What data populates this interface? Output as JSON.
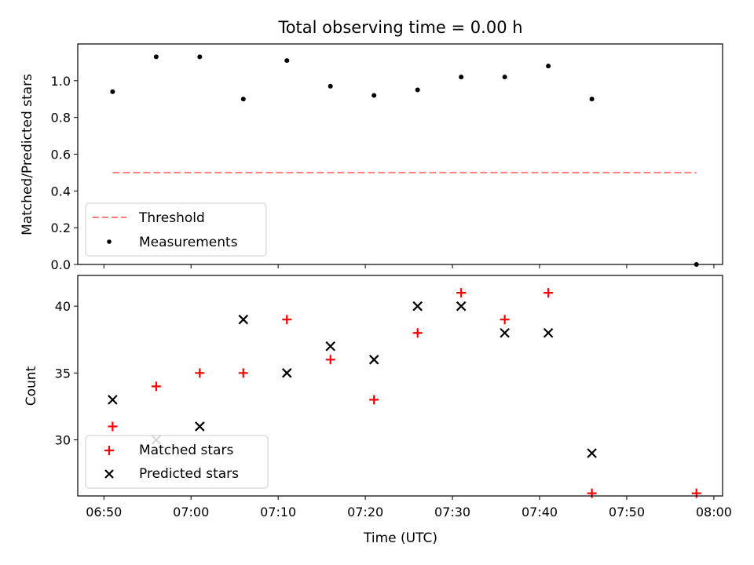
{
  "chart_data": [
    {
      "type": "scatter",
      "title": "Total observing time = 0.00 h",
      "xlabel": "",
      "ylabel": "Matched/Predicted stars",
      "xlim": [
        "06:47",
        "08:01"
      ],
      "ylim": [
        0,
        1.2
      ],
      "yticks": [
        "0.0",
        "0.2",
        "0.4",
        "0.6",
        "0.8",
        "1.0"
      ],
      "threshold": {
        "name": "Threshold",
        "value": 0.5,
        "x_start": "06:51",
        "x_end": "07:58",
        "color": "#ff7f7f",
        "style": "dashed"
      },
      "series": [
        {
          "name": "Measurements",
          "color": "#000000",
          "marker": "dot",
          "x": [
            "06:51",
            "06:56",
            "07:01",
            "07:06",
            "07:11",
            "07:16",
            "07:21",
            "07:26",
            "07:31",
            "07:36",
            "07:41",
            "07:46",
            "07:58"
          ],
          "y": [
            0.94,
            1.13,
            1.13,
            0.9,
            1.11,
            0.97,
            0.92,
            0.95,
            1.02,
            1.02,
            1.08,
            0.9,
            0.0
          ]
        }
      ],
      "legend": {
        "position": "lower-left"
      },
      "grid": false
    },
    {
      "type": "scatter",
      "title": "",
      "xlabel": "Time (UTC)",
      "ylabel": "Count",
      "xlim": [
        "06:47",
        "08:01"
      ],
      "ylim": [
        25.8,
        42.3
      ],
      "yticks": [
        "30",
        "35",
        "40"
      ],
      "xticks": [
        "06:50",
        "07:00",
        "07:10",
        "07:20",
        "07:30",
        "07:40",
        "07:50",
        "08:00"
      ],
      "series": [
        {
          "name": "Matched stars",
          "color": "#ff0000",
          "marker": "plus",
          "x": [
            "06:51",
            "06:56",
            "07:01",
            "07:06",
            "07:11",
            "07:16",
            "07:21",
            "07:26",
            "07:31",
            "07:36",
            "07:41",
            "07:46",
            "07:58"
          ],
          "y": [
            31,
            34,
            35,
            35,
            39,
            36,
            33,
            38,
            41,
            39,
            41,
            26,
            26
          ]
        },
        {
          "name": "Predicted stars",
          "color": "#000000",
          "marker": "x",
          "x": [
            "06:51",
            "06:56",
            "07:01",
            "07:06",
            "07:11",
            "07:16",
            "07:21",
            "07:26",
            "07:31",
            "07:36",
            "07:41",
            "07:46"
          ],
          "y": [
            33,
            30,
            31,
            39,
            35,
            37,
            36,
            40,
            40,
            38,
            38,
            29
          ]
        }
      ],
      "legend": {
        "position": "lower-left"
      },
      "grid": false
    }
  ]
}
